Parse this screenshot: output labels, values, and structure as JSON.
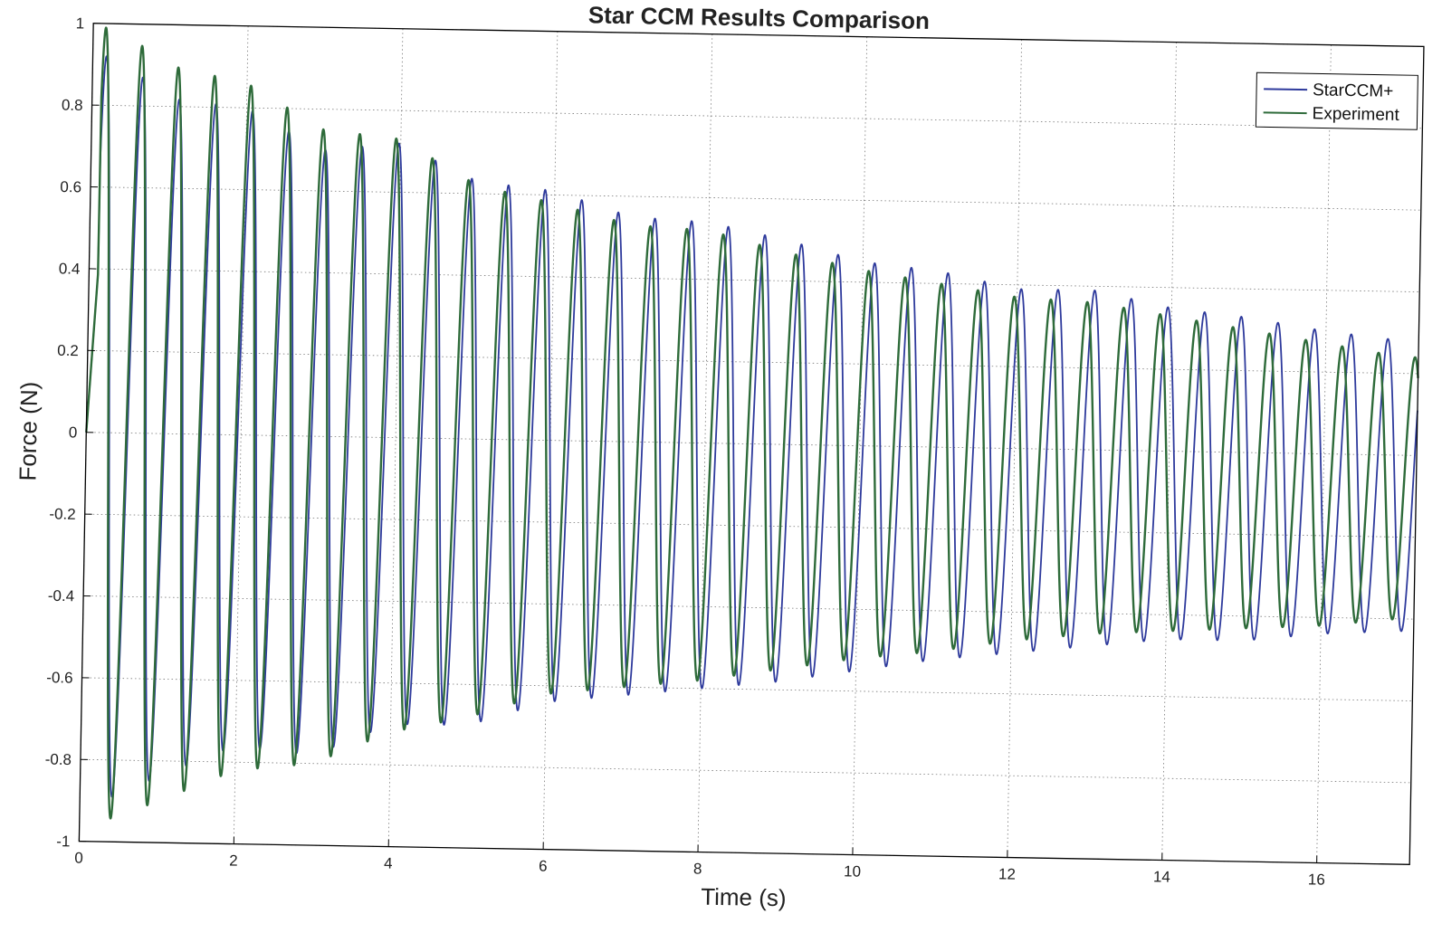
{
  "chart_data": {
    "type": "line",
    "title": "Star CCM Results Comparison",
    "xlabel": "Time (s)",
    "ylabel": "Force (N)",
    "xlim": [
      0,
      17.2
    ],
    "ylim": [
      -1,
      1
    ],
    "xticks": [
      0,
      2,
      4,
      6,
      8,
      10,
      12,
      14,
      16
    ],
    "yticks": [
      -1,
      -0.8,
      -0.6,
      -0.4,
      -0.2,
      0,
      0.2,
      0.4,
      0.6,
      0.8,
      1
    ],
    "xtick_labels": [
      "0",
      "2",
      "4",
      "6",
      "8",
      "10",
      "12",
      "14",
      "16"
    ],
    "ytick_labels": [
      "-1",
      "-0.8",
      "-0.6",
      "-0.4",
      "-0.2",
      "0",
      "0.2",
      "0.4",
      "0.6",
      "0.8",
      "1"
    ],
    "grid": true,
    "legend_position": "top-right",
    "series": [
      {
        "name": "StarCCM+",
        "color": "#2e3a9c",
        "oscillation_period_s": 0.475,
        "peak_envelope": [
          [
            0.3,
            0.92
          ],
          [
            1,
            0.82
          ],
          [
            2,
            0.8
          ],
          [
            3,
            0.7
          ],
          [
            4,
            0.72
          ],
          [
            5,
            0.63
          ],
          [
            6,
            0.61
          ],
          [
            7,
            0.55
          ],
          [
            8,
            0.54
          ],
          [
            9,
            0.5
          ],
          [
            10,
            0.45
          ],
          [
            11,
            0.43
          ],
          [
            12,
            0.39
          ],
          [
            13,
            0.39
          ],
          [
            14,
            0.35
          ],
          [
            15,
            0.33
          ],
          [
            16,
            0.3
          ],
          [
            17,
            0.28
          ]
        ],
        "trough_envelope": [
          [
            0.3,
            -0.9
          ],
          [
            1,
            -0.84
          ],
          [
            2,
            -0.76
          ],
          [
            3,
            -0.78
          ],
          [
            4,
            -0.7
          ],
          [
            5,
            -0.7
          ],
          [
            6,
            -0.64
          ],
          [
            7,
            -0.62
          ],
          [
            8,
            -0.6
          ],
          [
            9,
            -0.58
          ],
          [
            10,
            -0.55
          ],
          [
            11,
            -0.52
          ],
          [
            12,
            -0.5
          ],
          [
            13,
            -0.48
          ],
          [
            14,
            -0.46
          ],
          [
            15,
            -0.46
          ],
          [
            16,
            -0.44
          ],
          [
            17,
            -0.43
          ]
        ]
      },
      {
        "name": "Experiment",
        "color": "#2e6b3a",
        "oscillation_period_s": 0.472,
        "peak_envelope": [
          [
            0.3,
            0.99
          ],
          [
            1,
            0.9
          ],
          [
            2,
            0.86
          ],
          [
            3,
            0.75
          ],
          [
            4,
            0.73
          ],
          [
            5,
            0.62
          ],
          [
            6,
            0.58
          ],
          [
            7,
            0.53
          ],
          [
            8,
            0.52
          ],
          [
            9,
            0.47
          ],
          [
            10,
            0.43
          ],
          [
            11,
            0.4
          ],
          [
            12,
            0.37
          ],
          [
            13,
            0.36
          ],
          [
            14,
            0.33
          ],
          [
            15,
            0.3
          ],
          [
            16,
            0.27
          ],
          [
            17,
            0.24
          ]
        ],
        "trough_envelope": [
          [
            0.3,
            -0.95
          ],
          [
            1,
            -0.9
          ],
          [
            2,
            -0.82
          ],
          [
            3,
            -0.8
          ],
          [
            4,
            -0.72
          ],
          [
            5,
            -0.68
          ],
          [
            6,
            -0.62
          ],
          [
            7,
            -0.6
          ],
          [
            8,
            -0.58
          ],
          [
            9,
            -0.55
          ],
          [
            10,
            -0.52
          ],
          [
            11,
            -0.5
          ],
          [
            12,
            -0.47
          ],
          [
            13,
            -0.45
          ],
          [
            14,
            -0.44
          ],
          [
            15,
            -0.43
          ],
          [
            16,
            -0.42
          ],
          [
            17,
            -0.4
          ]
        ]
      }
    ]
  }
}
